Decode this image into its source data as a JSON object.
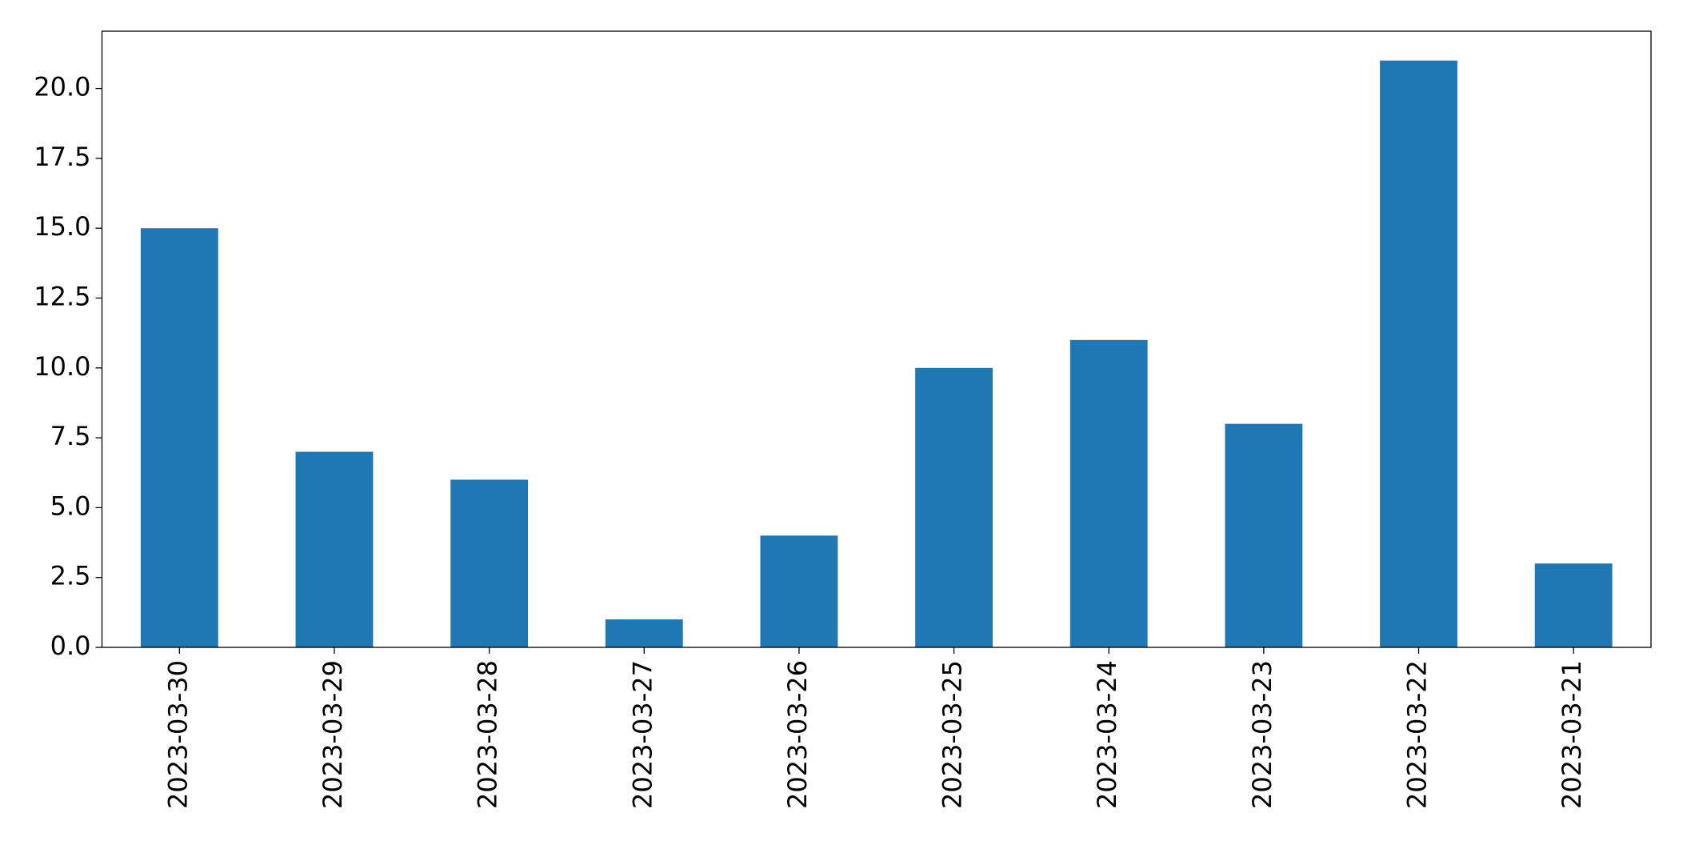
{
  "chart_data": {
    "type": "bar",
    "categories": [
      "2023-03-30",
      "2023-03-29",
      "2023-03-28",
      "2023-03-27",
      "2023-03-26",
      "2023-03-25",
      "2023-03-24",
      "2023-03-23",
      "2023-03-22",
      "2023-03-21"
    ],
    "values": [
      15,
      7,
      6,
      1,
      4,
      10,
      11,
      8,
      21,
      3
    ],
    "color": "#1f77b4",
    "ylim": [
      0,
      22.05
    ],
    "yticks": [
      {
        "value": 0,
        "label": "0.0"
      },
      2.5,
      {
        "value": 5,
        "label": "5.0"
      },
      7.5,
      {
        "value": 10,
        "label": "10.0"
      },
      12.5,
      {
        "value": 15,
        "label": "15.0"
      },
      17.5,
      {
        "value": 20,
        "label": "20.0"
      }
    ],
    "grid": false
  }
}
